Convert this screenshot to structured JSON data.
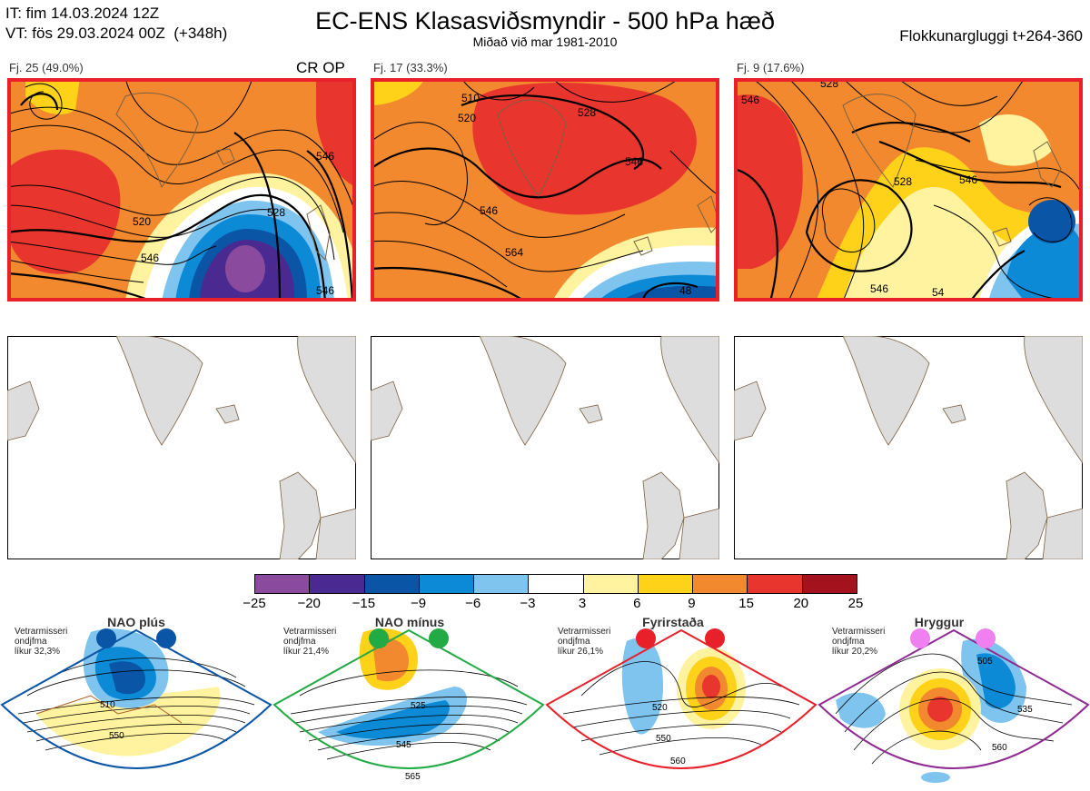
{
  "header": {
    "it_line": "IT: fim 14.03.2024 12Z",
    "vt_line": "VT: fös 29.03.2024 00Z  (+348h)",
    "title": "EC-ENS Klasasviðsmyndir - 500 hPa hæð",
    "subtitle": "Miðað við mar 1981-2010",
    "window": "Flokkunargluggi t+264-360"
  },
  "panels": [
    {
      "label": "Fj. 25 (49.0%)",
      "tag": "CR OP",
      "contours": [
        "520",
        "546",
        "528",
        "546",
        "546"
      ]
    },
    {
      "label": "Fj. 17 (33.3%)",
      "tag": "",
      "contours": [
        "510",
        "520",
        "528",
        "546",
        "564",
        "546",
        "48"
      ]
    },
    {
      "label": "Fj. 9 (17.6%)",
      "tag": "",
      "contours": [
        "528",
        "546",
        "528",
        "546",
        "546",
        "54"
      ]
    }
  ],
  "colorbar": {
    "ticks": [
      "−25",
      "−20",
      "−15",
      "−9",
      "−6",
      "−3",
      "3",
      "6",
      "9",
      "15",
      "20",
      "25"
    ],
    "colors": [
      "#8a4a9e",
      "#4a2a90",
      "#0a55a6",
      "#0c8ad6",
      "#7ec4ee",
      "#ffffff",
      "#fff3a0",
      "#ffd21a",
      "#f3892e",
      "#e8352e",
      "#a4121e"
    ]
  },
  "regimes": [
    {
      "name": "NAO plús",
      "note": "Vetrarmisseri\nondjfma\nlíkur 32,3%",
      "color": "#0a55a6",
      "contours": [
        "510",
        "550"
      ]
    },
    {
      "name": "NAO mínus",
      "note": "Vetrarmisseri\nondjfma\nlíkur 21,4%",
      "color": "#22aa44",
      "contours": [
        "525",
        "545",
        "565"
      ]
    },
    {
      "name": "Fyrirstaða",
      "note": "Vetrarmisseri\nondjfma\nlíkur 26,1%",
      "color": "#e8202a",
      "contours": [
        "520",
        "550",
        "560"
      ]
    },
    {
      "name": "Hryggur",
      "note": "Vetrarmisseri\nondjfma\nlíkur 20,2%",
      "color": "#8e2a92",
      "contours": [
        "505",
        "535",
        "560"
      ]
    }
  ]
}
